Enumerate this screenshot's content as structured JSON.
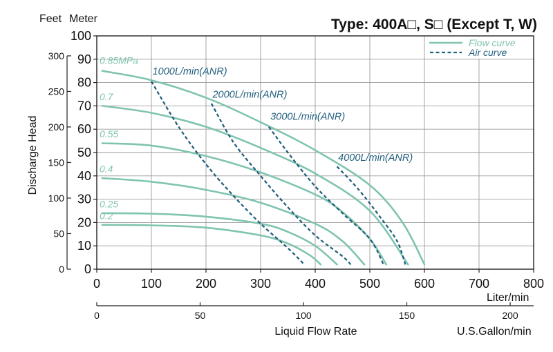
{
  "chart_data": {
    "type": "line",
    "title": "Type: 400A□,  S□ (Except T, W)",
    "xlabel": "Liquid Flow Rate",
    "x_unit_primary": "Liter/min",
    "x_unit_secondary": "U.S.Gallon/min",
    "ylabel": "Discharge Head",
    "y_unit_left": "Feet",
    "y_unit_right": "Meter",
    "xlim": [
      0,
      800
    ],
    "ylim": [
      0,
      100
    ],
    "x_ticks": [
      0,
      100,
      200,
      300,
      400,
      500,
      600,
      700,
      800
    ],
    "y_ticks_meter": [
      0,
      10,
      20,
      30,
      40,
      50,
      60,
      70,
      80,
      90,
      100
    ],
    "y_ticks_feet": [
      0,
      50,
      100,
      150,
      200,
      250,
      300
    ],
    "gallon_ticks": [
      0,
      50,
      100,
      150,
      200
    ],
    "legend": {
      "flow": "Flow curve",
      "air": "Air curve"
    },
    "flow_series": [
      {
        "name": "0.85MPa",
        "x": [
          10,
          100,
          200,
          300,
          400,
          500,
          560,
          600
        ],
        "y": [
          85,
          81,
          73.5,
          63,
          51,
          36,
          20,
          2
        ]
      },
      {
        "name": "0.7",
        "x": [
          10,
          100,
          200,
          300,
          400,
          500,
          570
        ],
        "y": [
          70,
          67,
          61,
          52,
          41,
          25,
          2
        ]
      },
      {
        "name": "0.55",
        "x": [
          10,
          100,
          200,
          300,
          400,
          450,
          500,
          530
        ],
        "y": [
          54,
          53,
          48.5,
          41.5,
          32,
          24.5,
          13,
          2
        ]
      },
      {
        "name": "0.4",
        "x": [
          10,
          100,
          200,
          300,
          400,
          450,
          490
        ],
        "y": [
          39,
          37.5,
          34,
          28.5,
          19.5,
          12,
          2
        ]
      },
      {
        "name": "0.25",
        "x": [
          10,
          100,
          200,
          300,
          350,
          400,
          440
        ],
        "y": [
          24,
          23.8,
          22.5,
          19.5,
          16,
          10,
          2
        ]
      },
      {
        "name": "0.2",
        "x": [
          10,
          100,
          200,
          300,
          350,
          390,
          410
        ],
        "y": [
          19,
          18.8,
          17.8,
          14.5,
          11,
          6,
          2
        ]
      }
    ],
    "air_series": [
      {
        "name": "1000L/min(ANR)",
        "x": [
          100,
          150,
          200,
          250,
          300,
          350,
          380
        ],
        "y": [
          80.5,
          61,
          45,
          31.5,
          19.5,
          9,
          2
        ]
      },
      {
        "name": "2000L/min(ANR)",
        "x": [
          210,
          250,
          300,
          350,
          400,
          450,
          465
        ],
        "y": [
          71,
          54.5,
          40,
          26.5,
          14.5,
          5.5,
          2
        ]
      },
      {
        "name": "3000L/min(ANR)",
        "x": [
          315,
          350,
          400,
          450,
          500,
          525
        ],
        "y": [
          61,
          50,
          35.5,
          24,
          13,
          2
        ]
      },
      {
        "name": "4000L/min(ANR)",
        "x": [
          440,
          480,
          520,
          550,
          565
        ],
        "y": [
          44,
          34,
          22,
          12,
          2
        ]
      }
    ],
    "labels": {
      "flow": [
        {
          "text": "0.85MPa",
          "x": 5,
          "y": 88
        },
        {
          "text": "0.7",
          "x": 5,
          "y": 72.5
        },
        {
          "text": "0.55",
          "x": 5,
          "y": 56.5
        },
        {
          "text": "0.4",
          "x": 5,
          "y": 41.5
        },
        {
          "text": "0.25",
          "x": 5,
          "y": 26.5
        },
        {
          "text": "0.2",
          "x": 5,
          "y": 21.5
        }
      ],
      "air": [
        {
          "text": "1000L/min(ANR)",
          "x": 102,
          "y": 83.5
        },
        {
          "text": "2000L/min(ANR)",
          "x": 212,
          "y": 73.5
        },
        {
          "text": "3000L/min(ANR)",
          "x": 318,
          "y": 64
        },
        {
          "text": "4000L/min(ANR)",
          "x": 442,
          "y": 46.5
        }
      ]
    }
  }
}
